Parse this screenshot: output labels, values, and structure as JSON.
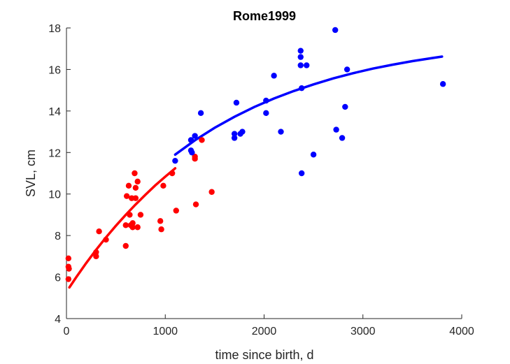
{
  "chart_data": {
    "type": "scatter",
    "title": "Rome1999",
    "xlabel": "time since birth, d",
    "ylabel": "SVL, cm",
    "xlim": [
      0,
      4000
    ],
    "ylim": [
      4,
      18
    ],
    "xticks": [
      0,
      1000,
      2000,
      3000,
      4000
    ],
    "yticks": [
      4,
      6,
      8,
      10,
      12,
      14,
      16,
      18
    ],
    "grid": false,
    "legend": "none",
    "colors": {
      "juvenile": "#ff0000",
      "adult": "#0000ff",
      "axis": "#262626"
    },
    "series": [
      {
        "color": "#ff0000",
        "points": [
          [
            20,
            6.9
          ],
          [
            20,
            6.5
          ],
          [
            25,
            6.4
          ],
          [
            20,
            5.9
          ],
          [
            300,
            7.0
          ],
          [
            300,
            7.2
          ],
          [
            330,
            8.2
          ],
          [
            400,
            7.8
          ],
          [
            600,
            7.5
          ],
          [
            600,
            8.5
          ],
          [
            610,
            9.9
          ],
          [
            630,
            10.4
          ],
          [
            640,
            9.0
          ],
          [
            650,
            8.5
          ],
          [
            660,
            9.8
          ],
          [
            670,
            8.4
          ],
          [
            670,
            8.6
          ],
          [
            690,
            11.0
          ],
          [
            700,
            10.3
          ],
          [
            700,
            9.8
          ],
          [
            720,
            10.6
          ],
          [
            720,
            8.4
          ],
          [
            750,
            9.0
          ],
          [
            950,
            8.7
          ],
          [
            960,
            8.3
          ],
          [
            980,
            10.4
          ],
          [
            1070,
            11.0
          ],
          [
            1110,
            9.2
          ],
          [
            1300,
            11.8
          ],
          [
            1300,
            11.7
          ],
          [
            1310,
            9.5
          ],
          [
            1370,
            12.6
          ],
          [
            1470,
            10.1
          ]
        ]
      },
      {
        "color": "#0000ff",
        "points": [
          [
            1100,
            11.6
          ],
          [
            1260,
            12.6
          ],
          [
            1260,
            12.1
          ],
          [
            1270,
            12.0
          ],
          [
            1300,
            12.8
          ],
          [
            1360,
            13.9
          ],
          [
            1700,
            12.9
          ],
          [
            1700,
            12.7
          ],
          [
            1720,
            14.4
          ],
          [
            1760,
            12.9
          ],
          [
            1780,
            13.0
          ],
          [
            2020,
            14.5
          ],
          [
            2020,
            13.9
          ],
          [
            2100,
            15.7
          ],
          [
            2170,
            13.0
          ],
          [
            2370,
            16.9
          ],
          [
            2370,
            16.6
          ],
          [
            2370,
            16.2
          ],
          [
            2380,
            15.1
          ],
          [
            2380,
            11.0
          ],
          [
            2430,
            16.2
          ],
          [
            2500,
            11.9
          ],
          [
            2720,
            17.9
          ],
          [
            2730,
            13.1
          ],
          [
            2790,
            12.7
          ],
          [
            2820,
            14.2
          ],
          [
            2840,
            16.0
          ],
          [
            3810,
            15.3
          ]
        ]
      }
    ],
    "curves": [
      {
        "color": "#ff0000",
        "x": [
          30,
          100,
          200,
          300,
          400,
          500,
          600,
          700,
          800,
          900,
          1000,
          1100
        ],
        "y": [
          5.5,
          6.0,
          6.68,
          7.31,
          7.91,
          8.47,
          9.0,
          9.5,
          9.97,
          10.42,
          10.84,
          11.24
        ]
      },
      {
        "color": "#0000ff",
        "x": [
          1100,
          1300,
          1500,
          1700,
          1900,
          2100,
          2300,
          2500,
          2700,
          2900,
          3100,
          3300,
          3500,
          3700,
          3800
        ],
        "y": [
          11.9,
          12.59,
          13.19,
          13.72,
          14.19,
          14.6,
          14.96,
          15.28,
          15.57,
          15.82,
          16.04,
          16.23,
          16.4,
          16.55,
          16.62
        ]
      }
    ]
  }
}
